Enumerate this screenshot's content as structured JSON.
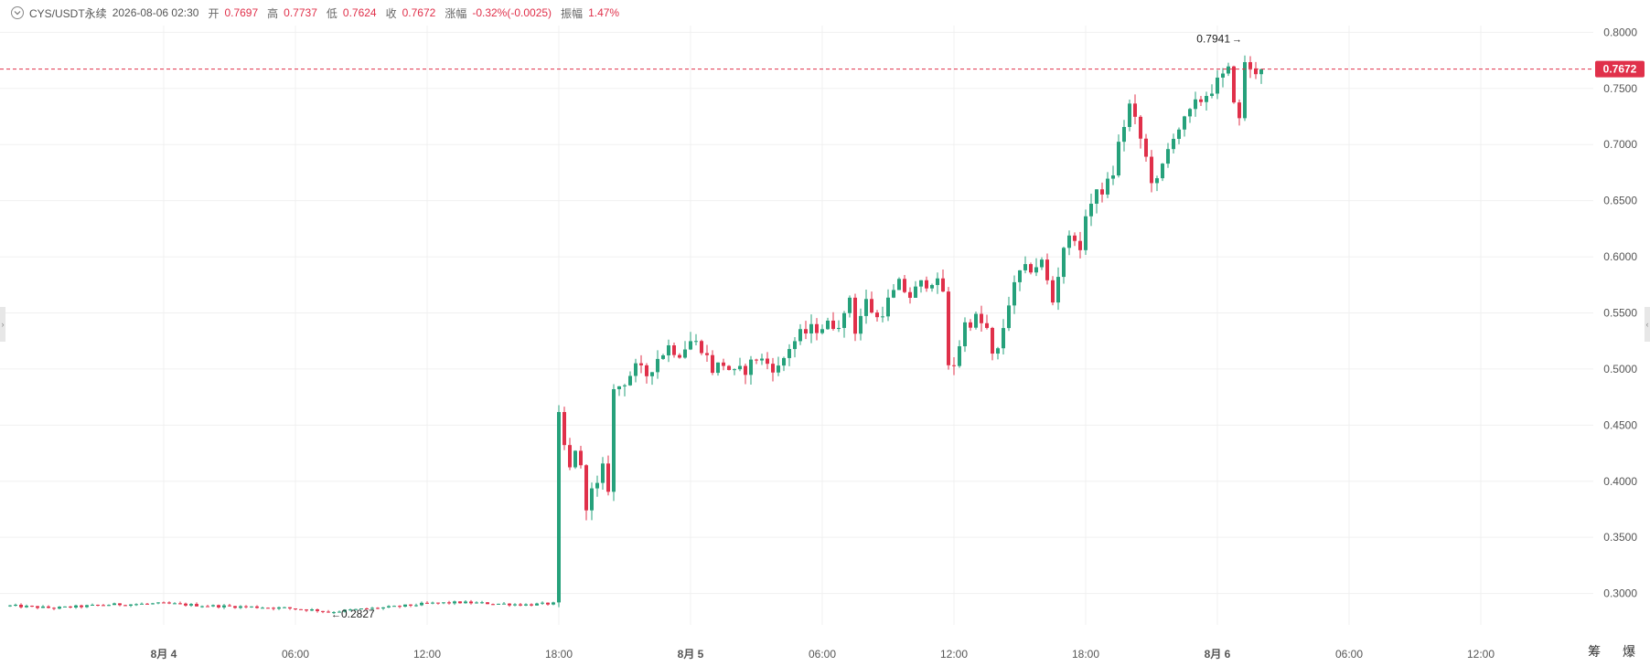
{
  "header": {
    "symbol": "CYS/USDT永续",
    "datetime": "2026-08-06 02:30",
    "open_label": "开",
    "open_value": "0.7697",
    "high_label": "高",
    "high_value": "0.7737",
    "low_label": "低",
    "low_value": "0.7624",
    "close_label": "收",
    "close_value": "0.7672",
    "change_label": "涨幅",
    "change_value": "-0.32%(-0.0025)",
    "amplitude_label": "振幅",
    "amplitude_value": "1.47%"
  },
  "corner_labels": "筹 爆",
  "colors": {
    "up": "#26a17b",
    "down": "#e0304a",
    "grid": "#f0f0f0",
    "axis_text": "#555555",
    "last_price_bg": "#e0304a"
  },
  "chart_data": {
    "type": "candlestick",
    "y_ticks": [
      "0.3000",
      "0.3500",
      "0.4000",
      "0.4500",
      "0.5000",
      "0.5500",
      "0.6000",
      "0.6500",
      "0.7000",
      "0.7500",
      "0.8000"
    ],
    "ylim": [
      0.272,
      0.806
    ],
    "x_ticks": [
      {
        "label": "8月 4",
        "bold": true,
        "index": 0
      },
      {
        "label": "06:00",
        "bold": false,
        "index": 24
      },
      {
        "label": "12:00",
        "bold": false,
        "index": 48
      },
      {
        "label": "18:00",
        "bold": false,
        "index": 72
      },
      {
        "label": "8月 5",
        "bold": true,
        "index": 96
      },
      {
        "label": "06:00",
        "bold": false,
        "index": 120
      },
      {
        "label": "12:00",
        "bold": false,
        "index": 144
      },
      {
        "label": "18:00",
        "bold": false,
        "index": 168
      },
      {
        "label": "8月 6",
        "bold": true,
        "index": 192
      },
      {
        "label": "06:00",
        "bold": false,
        "index": 216
      },
      {
        "label": "12:00",
        "bold": false,
        "index": 240
      }
    ],
    "first_index": -28,
    "last_price": "0.7672",
    "last_price_value": 0.7672,
    "high_marker": {
      "label": "0.7941",
      "value": 0.7941,
      "index": 197
    },
    "low_marker": {
      "label": "0.2827",
      "value": 0.2827,
      "index": 30
    },
    "anchors": [
      [
        -28,
        0.289
      ],
      [
        -20,
        0.287
      ],
      [
        -10,
        0.29
      ],
      [
        0,
        0.291
      ],
      [
        8,
        0.289
      ],
      [
        16,
        0.288
      ],
      [
        22,
        0.287
      ],
      [
        28,
        0.285
      ],
      [
        30,
        0.2835
      ],
      [
        36,
        0.286
      ],
      [
        42,
        0.288
      ],
      [
        48,
        0.291
      ],
      [
        54,
        0.292
      ],
      [
        60,
        0.291
      ],
      [
        66,
        0.29
      ],
      [
        71,
        0.291
      ],
      [
        72,
        0.456
      ],
      [
        73,
        0.43
      ],
      [
        74,
        0.41
      ],
      [
        75,
        0.43
      ],
      [
        76,
        0.41
      ],
      [
        77,
        0.38
      ],
      [
        78,
        0.39
      ],
      [
        79,
        0.395
      ],
      [
        80,
        0.41
      ],
      [
        81,
        0.395
      ],
      [
        82,
        0.48
      ],
      [
        84,
        0.49
      ],
      [
        86,
        0.5
      ],
      [
        88,
        0.495
      ],
      [
        90,
        0.51
      ],
      [
        92,
        0.52
      ],
      [
        94,
        0.515
      ],
      [
        96,
        0.525
      ],
      [
        98,
        0.52
      ],
      [
        100,
        0.5
      ],
      [
        102,
        0.505
      ],
      [
        104,
        0.495
      ],
      [
        106,
        0.5
      ],
      [
        108,
        0.51
      ],
      [
        110,
        0.505
      ],
      [
        112,
        0.5
      ],
      [
        114,
        0.52
      ],
      [
        116,
        0.53
      ],
      [
        118,
        0.535
      ],
      [
        120,
        0.538
      ],
      [
        122,
        0.54
      ],
      [
        124,
        0.545
      ],
      [
        125,
        0.565
      ],
      [
        126,
        0.535
      ],
      [
        128,
        0.56
      ],
      [
        130,
        0.545
      ],
      [
        132,
        0.56
      ],
      [
        134,
        0.575
      ],
      [
        136,
        0.565
      ],
      [
        138,
        0.575
      ],
      [
        140,
        0.58
      ],
      [
        142,
        0.57
      ],
      [
        143,
        0.5
      ],
      [
        144,
        0.505
      ],
      [
        146,
        0.54
      ],
      [
        148,
        0.545
      ],
      [
        150,
        0.535
      ],
      [
        151,
        0.51
      ],
      [
        152,
        0.515
      ],
      [
        154,
        0.56
      ],
      [
        156,
        0.585
      ],
      [
        158,
        0.59
      ],
      [
        160,
        0.595
      ],
      [
        162,
        0.56
      ],
      [
        164,
        0.61
      ],
      [
        166,
        0.62
      ],
      [
        167,
        0.6
      ],
      [
        168,
        0.64
      ],
      [
        170,
        0.655
      ],
      [
        172,
        0.665
      ],
      [
        173,
        0.675
      ],
      [
        174,
        0.7
      ],
      [
        176,
        0.735
      ],
      [
        178,
        0.705
      ],
      [
        180,
        0.67
      ],
      [
        181,
        0.665
      ],
      [
        182,
        0.68
      ],
      [
        184,
        0.71
      ],
      [
        186,
        0.72
      ],
      [
        188,
        0.735
      ],
      [
        190,
        0.745
      ],
      [
        192,
        0.755
      ],
      [
        194,
        0.765
      ],
      [
        196,
        0.72
      ],
      [
        197,
        0.775
      ],
      [
        198,
        0.765
      ],
      [
        200,
        0.7672
      ]
    ]
  }
}
